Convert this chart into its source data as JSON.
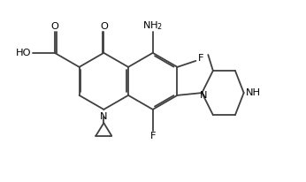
{
  "bg_color": "#ffffff",
  "line_color": "#404040",
  "line_width": 1.3,
  "font_size": 7.2,
  "fig_width": 3.46,
  "fig_height": 2.06,
  "dpi": 100,
  "xlim": [
    -1.8,
    8.8
  ],
  "ylim": [
    -2.6,
    4.8
  ]
}
